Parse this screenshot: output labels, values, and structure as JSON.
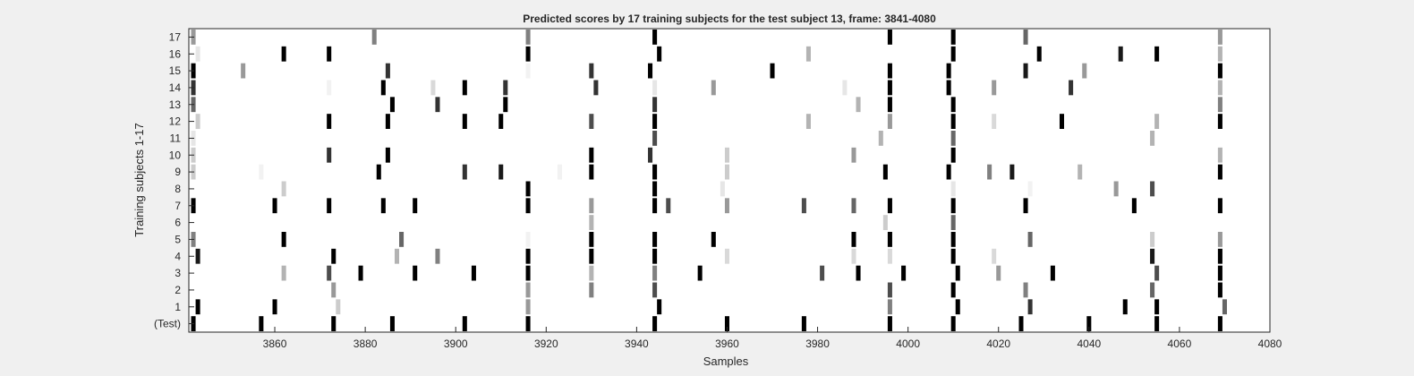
{
  "chart_data": {
    "type": "heatmap",
    "title": "Predicted scores by 17 training subjects for the test subject 13, frame: 3841-4080",
    "xlabel": "Samples",
    "ylabel": "Training subjects 1-17",
    "xlim": [
      3841,
      4080
    ],
    "xticks": [
      3860,
      3880,
      3900,
      3920,
      3940,
      3960,
      3980,
      4000,
      4020,
      4040,
      4060,
      4080
    ],
    "rows": [
      "(Test)",
      "1",
      "2",
      "3",
      "4",
      "5",
      "6",
      "7",
      "8",
      "9",
      "10",
      "11",
      "12",
      "13",
      "14",
      "15",
      "16",
      "17"
    ],
    "value_range": [
      0,
      1
    ],
    "colormap": "white-to-black (0 = white, 1 = black)",
    "grid": false,
    "legend": "none",
    "cells": [
      {
        "row": "(Test)",
        "points": [
          [
            3842,
            1
          ],
          [
            3857,
            1
          ],
          [
            3873,
            1
          ],
          [
            3886,
            1
          ],
          [
            3902,
            1
          ],
          [
            3916,
            1
          ],
          [
            3944,
            1
          ],
          [
            3960,
            1
          ],
          [
            3977,
            1
          ],
          [
            3996,
            1
          ],
          [
            4010,
            1
          ],
          [
            4025,
            1
          ],
          [
            4040,
            1
          ],
          [
            4055,
            1
          ],
          [
            4069,
            1
          ]
        ]
      },
      {
        "row": "1",
        "points": [
          [
            3843,
            1
          ],
          [
            3860,
            1
          ],
          [
            3874,
            0.2
          ],
          [
            3916,
            0.4
          ],
          [
            3945,
            1
          ],
          [
            3996,
            0.5
          ],
          [
            4011,
            1
          ],
          [
            4027,
            0.8
          ],
          [
            4048,
            1
          ],
          [
            4055,
            1
          ],
          [
            4070,
            0.6
          ]
        ]
      },
      {
        "row": "2",
        "points": [
          [
            3873,
            0.4
          ],
          [
            3916,
            0.4
          ],
          [
            3930,
            0.5
          ],
          [
            3944,
            0.7
          ],
          [
            3996,
            0.7
          ],
          [
            4010,
            1
          ],
          [
            4026,
            0.5
          ],
          [
            4054,
            0.6
          ],
          [
            4069,
            1
          ]
        ]
      },
      {
        "row": "3",
        "points": [
          [
            3862,
            0.3
          ],
          [
            3872,
            0.7
          ],
          [
            3879,
            1
          ],
          [
            3891,
            1
          ],
          [
            3904,
            1
          ],
          [
            3916,
            1
          ],
          [
            3930,
            0.3
          ],
          [
            3944,
            0.5
          ],
          [
            3954,
            1
          ],
          [
            3981,
            0.7
          ],
          [
            3989,
            1
          ],
          [
            3999,
            1
          ],
          [
            4011,
            1
          ],
          [
            4020,
            0.4
          ],
          [
            4032,
            1
          ],
          [
            4055,
            0.7
          ],
          [
            4069,
            1
          ]
        ]
      },
      {
        "row": "4",
        "points": [
          [
            3843,
            0.9
          ],
          [
            3873,
            1
          ],
          [
            3887,
            0.3
          ],
          [
            3896,
            0.5
          ],
          [
            3916,
            1
          ],
          [
            3930,
            1
          ],
          [
            3944,
            1
          ],
          [
            3960,
            0.15
          ],
          [
            3988,
            0.15
          ],
          [
            3996,
            0.15
          ],
          [
            4010,
            1
          ],
          [
            4019,
            0.15
          ],
          [
            4054,
            0.9
          ],
          [
            4069,
            1
          ]
        ]
      },
      {
        "row": "5",
        "points": [
          [
            3842,
            0.5
          ],
          [
            3862,
            1
          ],
          [
            3888,
            0.6
          ],
          [
            3916,
            0.05
          ],
          [
            3930,
            1
          ],
          [
            3944,
            1
          ],
          [
            3957,
            1
          ],
          [
            3988,
            1
          ],
          [
            3996,
            1
          ],
          [
            4010,
            1
          ],
          [
            4027,
            0.6
          ],
          [
            4054,
            0.2
          ],
          [
            4069,
            0.4
          ]
        ]
      },
      {
        "row": "6",
        "points": [
          [
            3930,
            0.3
          ],
          [
            3995,
            0.2
          ],
          [
            4010,
            0.6
          ]
        ]
      },
      {
        "row": "7",
        "points": [
          [
            3842,
            1
          ],
          [
            3860,
            1
          ],
          [
            3872,
            1
          ],
          [
            3884,
            1
          ],
          [
            3891,
            1
          ],
          [
            3916,
            1
          ],
          [
            3930,
            0.4
          ],
          [
            3944,
            1
          ],
          [
            3947,
            0.7
          ],
          [
            3960,
            0.4
          ],
          [
            3977,
            0.7
          ],
          [
            3988,
            0.6
          ],
          [
            3996,
            1
          ],
          [
            4010,
            1
          ],
          [
            4026,
            1
          ],
          [
            4050,
            1
          ],
          [
            4069,
            1
          ]
        ]
      },
      {
        "row": "8",
        "points": [
          [
            3862,
            0.2
          ],
          [
            3916,
            1
          ],
          [
            3944,
            1
          ],
          [
            3959,
            0.1
          ],
          [
            4010,
            0.1
          ],
          [
            4027,
            0.05
          ],
          [
            4046,
            0.4
          ],
          [
            4054,
            0.7
          ]
        ]
      },
      {
        "row": "9",
        "points": [
          [
            3842,
            0.2
          ],
          [
            3857,
            0.05
          ],
          [
            3883,
            1
          ],
          [
            3902,
            0.8
          ],
          [
            3910,
            0.9
          ],
          [
            3923,
            0.05
          ],
          [
            3930,
            1
          ],
          [
            3944,
            1
          ],
          [
            3960,
            0.2
          ],
          [
            3995,
            1
          ],
          [
            4009,
            1
          ],
          [
            4018,
            0.5
          ],
          [
            4023,
            0.9
          ],
          [
            4038,
            0.3
          ],
          [
            4069,
            1
          ]
        ]
      },
      {
        "row": "10",
        "points": [
          [
            3842,
            0.2
          ],
          [
            3872,
            0.8
          ],
          [
            3885,
            1
          ],
          [
            3930,
            1
          ],
          [
            3943,
            0.8
          ],
          [
            3960,
            0.2
          ],
          [
            3988,
            0.4
          ],
          [
            4010,
            1
          ],
          [
            4069,
            0.3
          ]
        ]
      },
      {
        "row": "11",
        "points": [
          [
            3842,
            0.1
          ],
          [
            3944,
            0.7
          ],
          [
            3994,
            0.3
          ],
          [
            4010,
            0.6
          ],
          [
            4054,
            0.3
          ]
        ]
      },
      {
        "row": "12",
        "points": [
          [
            3843,
            0.2
          ],
          [
            3872,
            1
          ],
          [
            3885,
            1
          ],
          [
            3902,
            1
          ],
          [
            3910,
            1
          ],
          [
            3930,
            0.7
          ],
          [
            3944,
            1
          ],
          [
            3978,
            0.3
          ],
          [
            3996,
            0.4
          ],
          [
            4010,
            1
          ],
          [
            4019,
            0.15
          ],
          [
            4034,
            1
          ],
          [
            4055,
            0.3
          ],
          [
            4069,
            1
          ]
        ]
      },
      {
        "row": "13",
        "points": [
          [
            3842,
            0.6
          ],
          [
            3886,
            1
          ],
          [
            3896,
            0.8
          ],
          [
            3911,
            1
          ],
          [
            3944,
            0.8
          ],
          [
            3989,
            0.3
          ],
          [
            3996,
            1
          ],
          [
            4010,
            1
          ],
          [
            4069,
            0.5
          ]
        ]
      },
      {
        "row": "14",
        "points": [
          [
            3842,
            0.8
          ],
          [
            3872,
            0.05
          ],
          [
            3884,
            1
          ],
          [
            3895,
            0.15
          ],
          [
            3902,
            1
          ],
          [
            3911,
            0.8
          ],
          [
            3931,
            0.8
          ],
          [
            3944,
            0.1
          ],
          [
            3957,
            0.4
          ],
          [
            3986,
            0.1
          ],
          [
            3996,
            1
          ],
          [
            4009,
            1
          ],
          [
            4019,
            0.4
          ],
          [
            4036,
            0.8
          ],
          [
            4069,
            0.3
          ]
        ]
      },
      {
        "row": "15",
        "points": [
          [
            3842,
            1
          ],
          [
            3853,
            0.4
          ],
          [
            3885,
            0.8
          ],
          [
            3916,
            0.05
          ],
          [
            3930,
            0.8
          ],
          [
            3943,
            1
          ],
          [
            3970,
            1
          ],
          [
            3996,
            1
          ],
          [
            4009,
            1
          ],
          [
            4026,
            0.9
          ],
          [
            4039,
            0.4
          ],
          [
            4069,
            1
          ]
        ]
      },
      {
        "row": "16",
        "points": [
          [
            3843,
            0.1
          ],
          [
            3862,
            1
          ],
          [
            3872,
            1
          ],
          [
            3916,
            1
          ],
          [
            3945,
            1
          ],
          [
            3978,
            0.3
          ],
          [
            4010,
            1
          ],
          [
            4029,
            1
          ],
          [
            4047,
            0.9
          ],
          [
            4055,
            1
          ],
          [
            4069,
            0.3
          ]
        ]
      },
      {
        "row": "17",
        "points": [
          [
            3842,
            0.4
          ],
          [
            3882,
            0.5
          ],
          [
            3916,
            0.5
          ],
          [
            3944,
            1
          ],
          [
            3996,
            1
          ],
          [
            4010,
            1
          ],
          [
            4026,
            0.6
          ],
          [
            4069,
            0.4
          ]
        ]
      }
    ]
  }
}
